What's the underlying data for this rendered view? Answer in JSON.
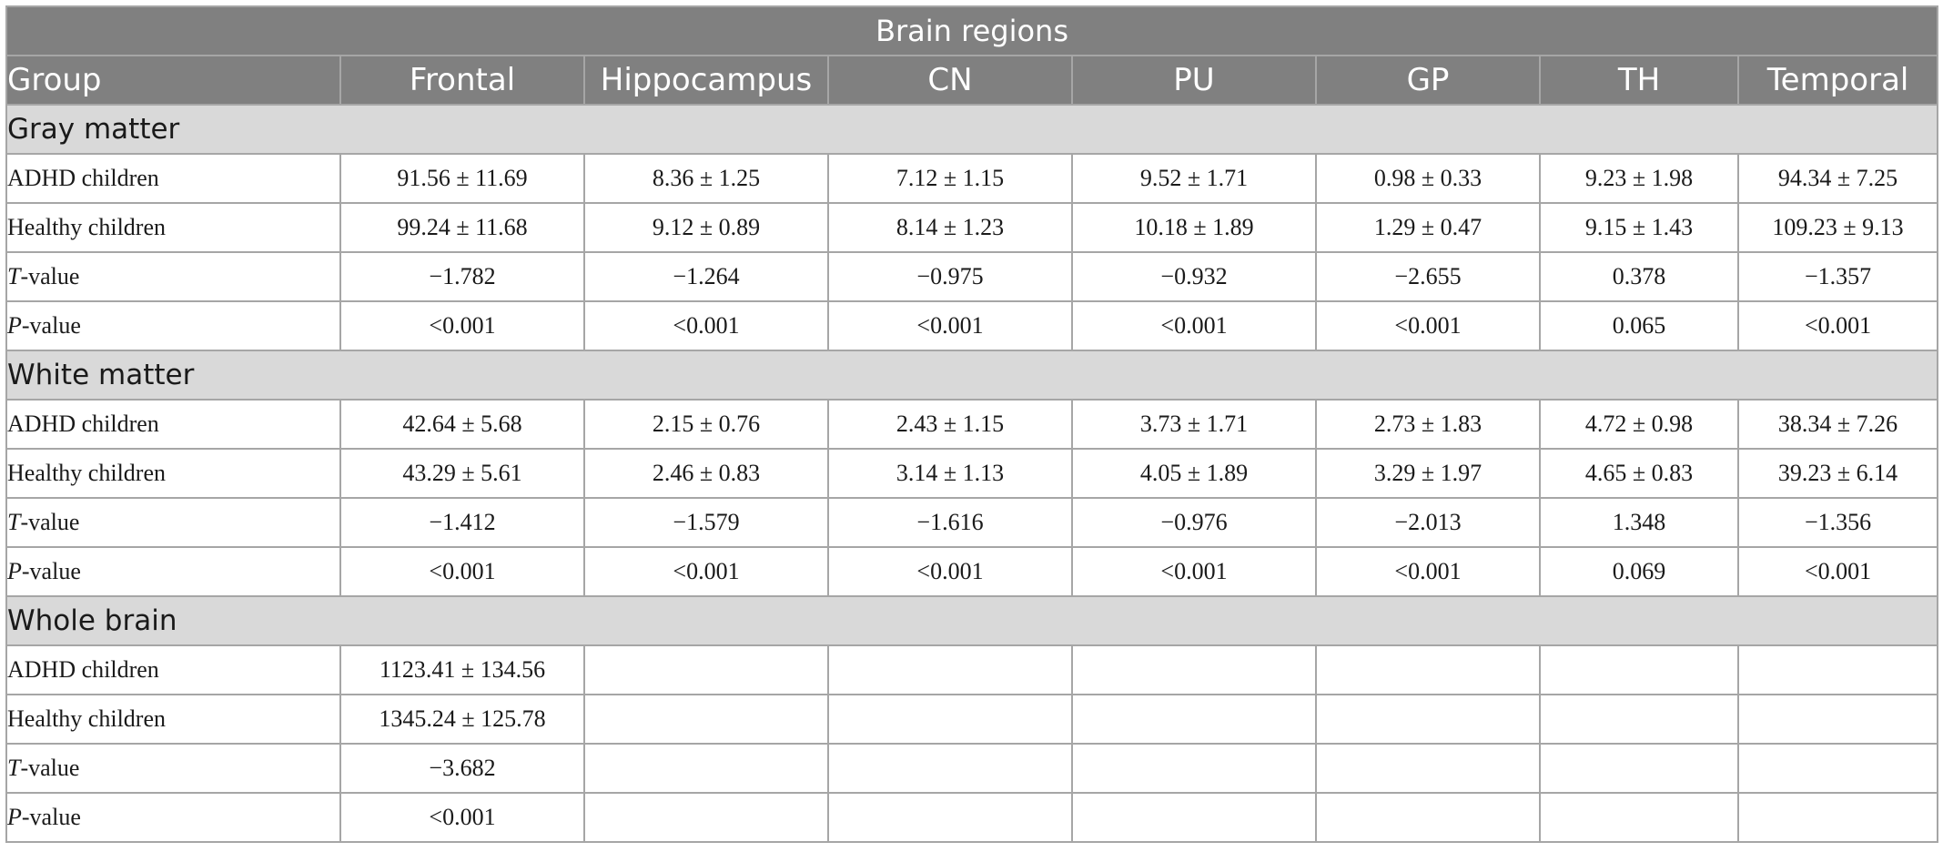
{
  "table": {
    "super_header": "Brain regions",
    "columns": [
      "Group",
      "Frontal",
      "Hippocampus",
      "CN",
      "PU",
      "GP",
      "TH",
      "Temporal"
    ],
    "sections": [
      {
        "title": "Gray matter",
        "rows": [
          {
            "label": "ADHD children",
            "values": [
              "91.56 ± 11.69",
              "8.36 ± 1.25",
              "7.12 ± 1.15",
              "9.52 ± 1.71",
              "0.98 ± 0.33",
              "9.23 ± 1.98",
              "94.34 ± 7.25"
            ]
          },
          {
            "label": "Healthy children",
            "values": [
              "99.24 ± 11.68",
              "9.12 ± 0.89",
              "8.14 ± 1.23",
              "10.18 ± 1.89",
              "1.29 ± 0.47",
              "9.15 ± 1.43",
              "109.23 ± 9.13"
            ]
          },
          {
            "label_italic": "T",
            "label_rest": "-value",
            "values": [
              "−1.782",
              "−1.264",
              "−0.975",
              "−0.932",
              "−2.655",
              "0.378",
              "−1.357"
            ]
          },
          {
            "label_italic": "P",
            "label_rest": "-value",
            "values": [
              "<0.001",
              "<0.001",
              "<0.001",
              "<0.001",
              "<0.001",
              "0.065",
              "<0.001"
            ]
          }
        ]
      },
      {
        "title": "White matter",
        "rows": [
          {
            "label": "ADHD children",
            "values": [
              "42.64 ± 5.68",
              "2.15 ± 0.76",
              "2.43 ± 1.15",
              "3.73 ± 1.71",
              "2.73 ± 1.83",
              "4.72 ± 0.98",
              "38.34 ± 7.26"
            ]
          },
          {
            "label": "Healthy children",
            "values": [
              "43.29 ± 5.61",
              "2.46 ± 0.83",
              "3.14 ± 1.13",
              "4.05 ± 1.89",
              "3.29 ± 1.97",
              "4.65 ± 0.83",
              "39.23 ± 6.14"
            ]
          },
          {
            "label_italic": "T",
            "label_rest": "-value",
            "values": [
              "−1.412",
              "−1.579",
              "−1.616",
              "−0.976",
              "−2.013",
              "1.348",
              "−1.356"
            ]
          },
          {
            "label_italic": "P",
            "label_rest": "-value",
            "values": [
              "<0.001",
              "<0.001",
              "<0.001",
              "<0.001",
              "<0.001",
              "0.069",
              "<0.001"
            ]
          }
        ]
      },
      {
        "title": "Whole brain",
        "rows": [
          {
            "label": "ADHD children",
            "values": [
              "1123.41 ± 134.56",
              "",
              "",
              "",
              "",
              "",
              ""
            ]
          },
          {
            "label": "Healthy children",
            "values": [
              "1345.24 ± 125.78",
              "",
              "",
              "",
              "",
              "",
              ""
            ]
          },
          {
            "label_italic": "T",
            "label_rest": "-value",
            "values": [
              "−3.682",
              "",
              "",
              "",
              "",
              "",
              ""
            ]
          },
          {
            "label_italic": "P",
            "label_rest": "-value",
            "values": [
              "<0.001",
              "",
              "",
              "",
              "",
              "",
              ""
            ]
          }
        ]
      }
    ]
  }
}
